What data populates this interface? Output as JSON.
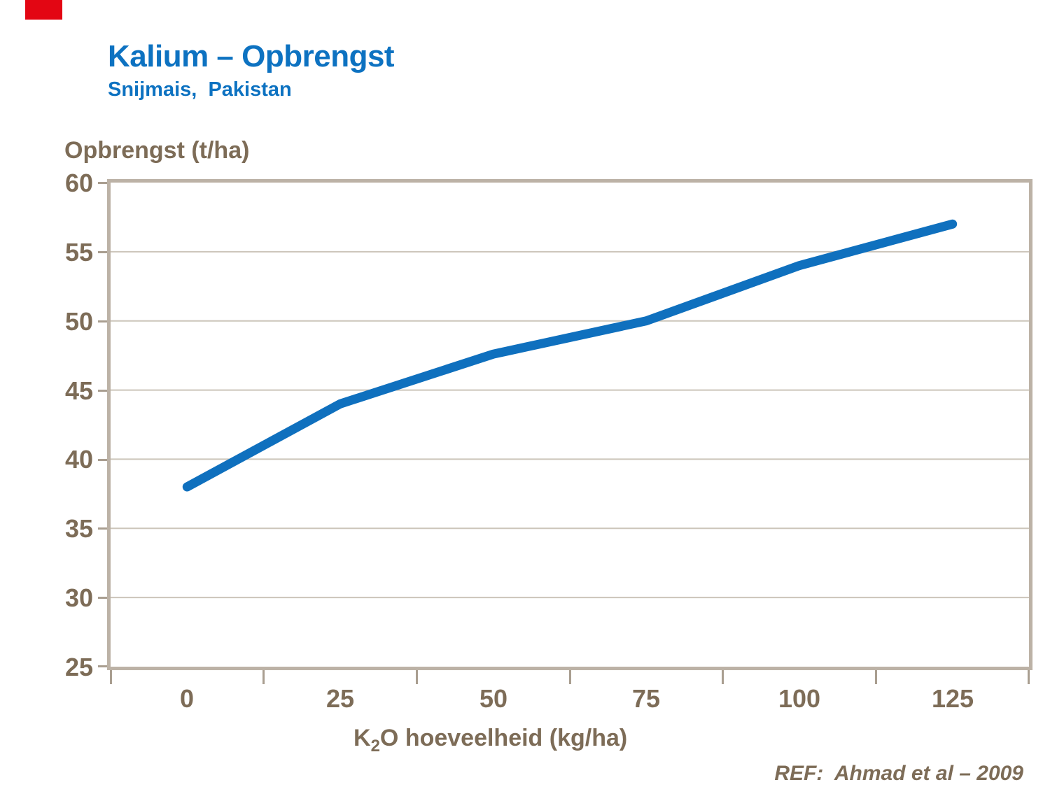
{
  "header": {
    "title": "Kalium – Opbrengst",
    "subtitle": "Snijmais,  Pakistan",
    "accent_color": "#0D72C1",
    "flag_color": "#E30613"
  },
  "chart_data": {
    "type": "line",
    "title": "Kalium – Opbrengst",
    "subtitle": "Snijmais, Pakistan",
    "x": [
      0,
      25,
      50,
      75,
      100,
      125
    ],
    "series": [
      {
        "name": "Opbrengst",
        "values": [
          38,
          44,
          47.6,
          50,
          54,
          57
        ]
      }
    ],
    "xlabel": "K2O hoeveelheid (kg/ha)",
    "xlabel_parts": {
      "base": "K",
      "sub": "2",
      "rest": "O hoeveelheid (kg/ha)"
    },
    "ylabel": "Opbrengst (t/ha)",
    "ylim": [
      25,
      60
    ],
    "xticks": [
      0,
      25,
      50,
      75,
      100,
      125
    ],
    "yticks": [
      25,
      30,
      35,
      40,
      45,
      50,
      55,
      60
    ],
    "ytick_labels": [
      "60",
      "55",
      "50",
      "45",
      "40",
      "35",
      "30",
      "25"
    ],
    "xtick_labels": [
      "0",
      "25",
      "50",
      "75",
      "100",
      "125"
    ],
    "grid": "horizontal",
    "legend": "none",
    "line_color": "#0F70BE",
    "line_width": 13,
    "axis_text_color": "#7D6C57",
    "frame_color": "#BCB2A6",
    "gridline_color": "#CCC5BA"
  },
  "footer": {
    "reference": "REF:  Ahmad et al – 2009"
  }
}
